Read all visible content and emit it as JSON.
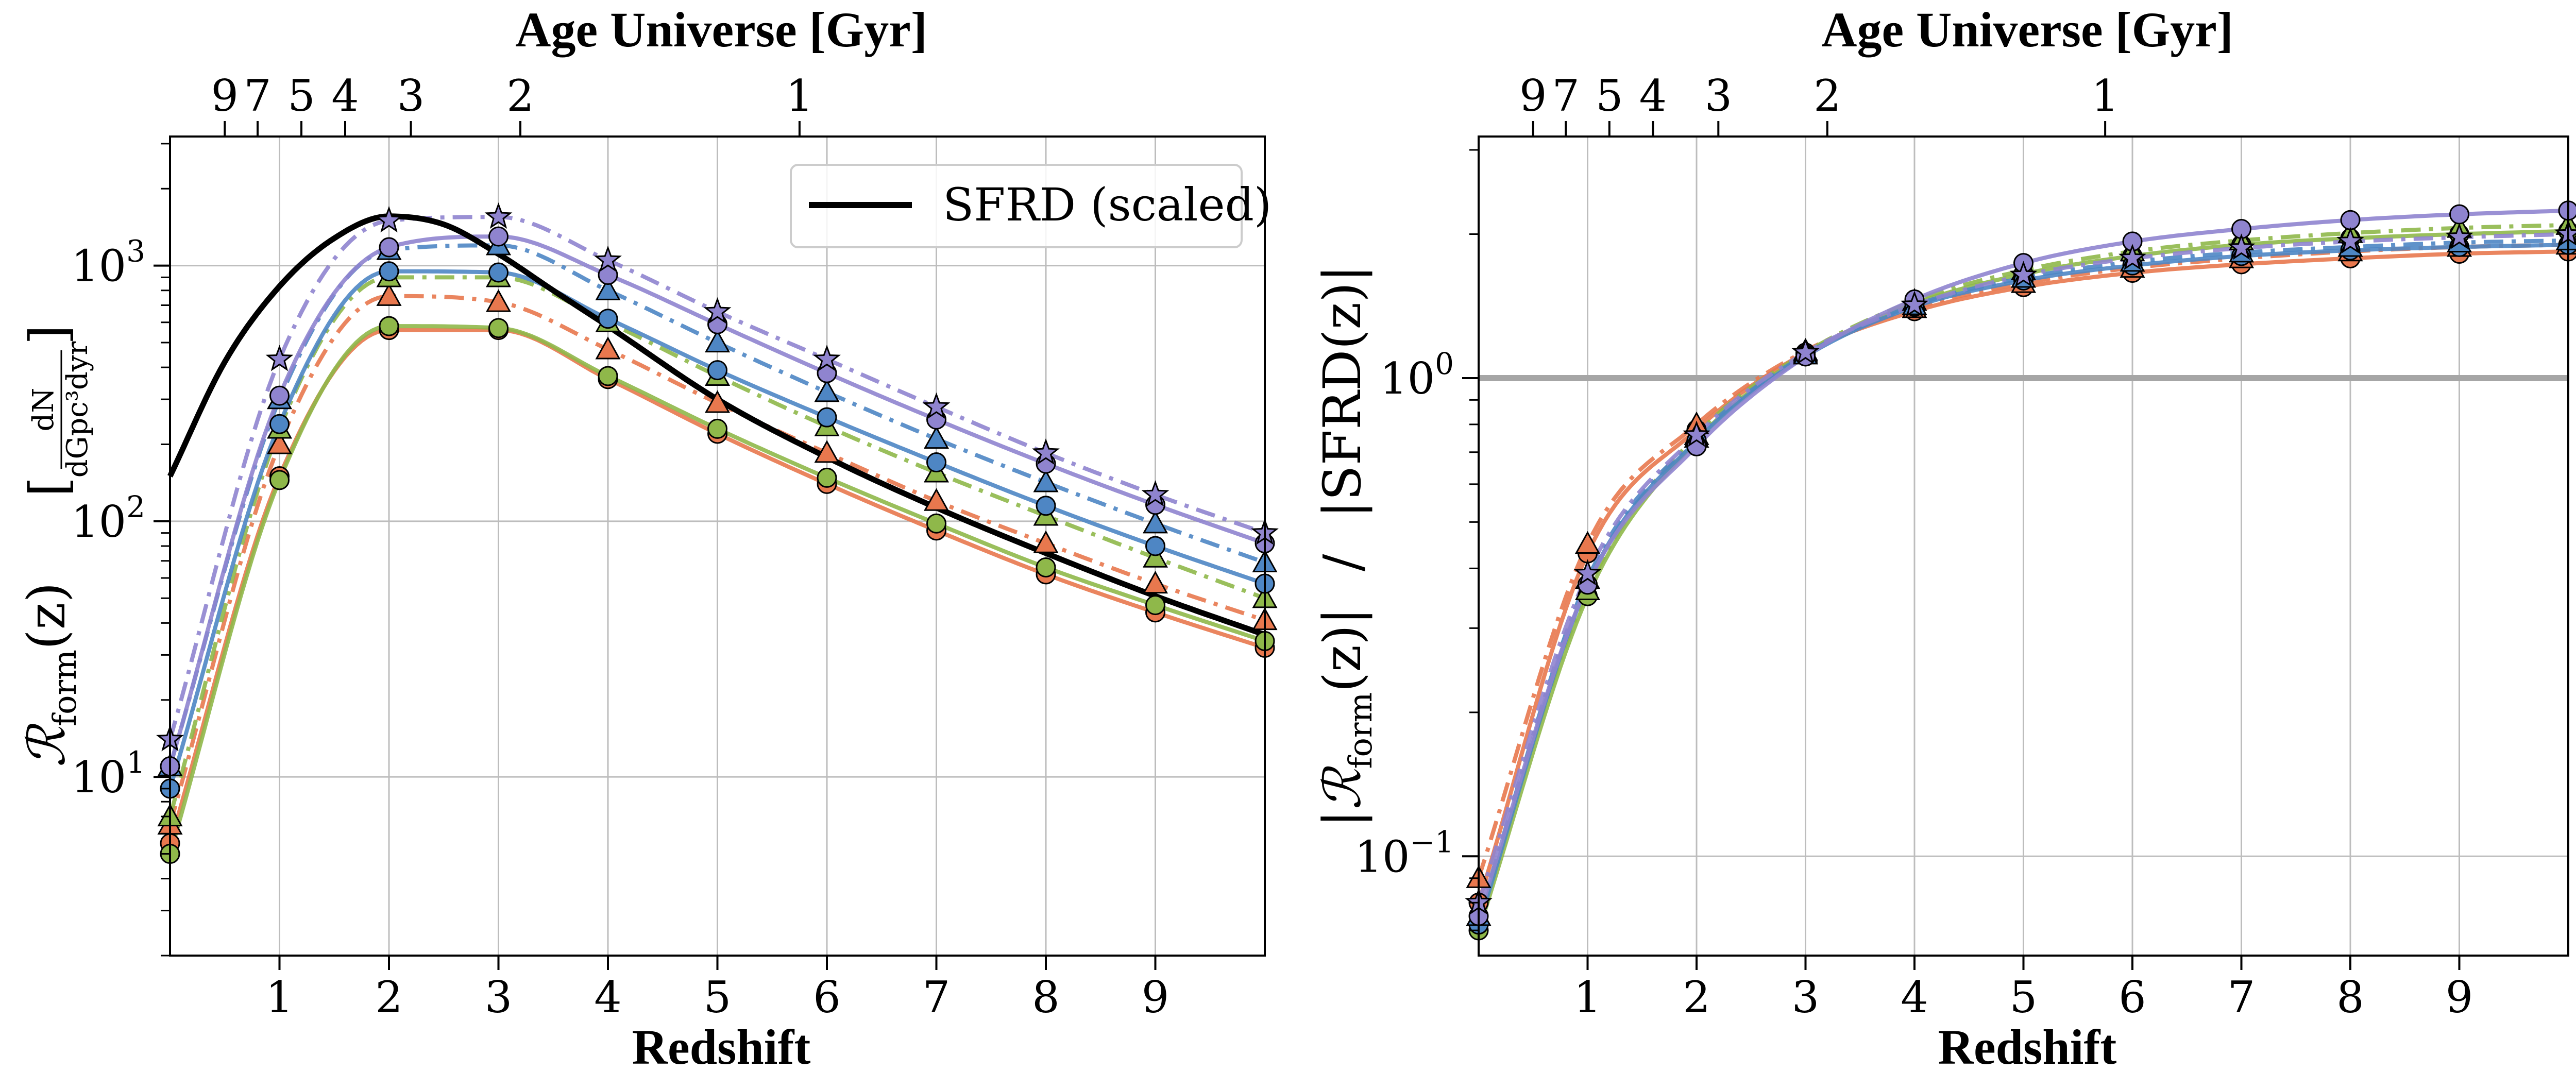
{
  "colors": {
    "orange": "#e8784e",
    "green": "#8fb84a",
    "blue": "#4e86c4",
    "purple": "#8f84cf",
    "black": "#000000",
    "grid": "#bdbdbd",
    "unity_line": "#a6a6a6"
  },
  "chart_data": [
    {
      "type": "line",
      "title": "",
      "top_axis_label": "Age Universe [Gyr]",
      "top_axis_ticks": [
        "9",
        "7",
        "5",
        "4",
        "3",
        "2",
        "1"
      ],
      "top_axis_tick_redshifts": [
        0.5,
        0.8,
        1.2,
        1.6,
        2.2,
        3.2,
        5.75
      ],
      "xlabel": "Redshift",
      "ylabel": "R_form(z) [dN / dGpc^3 dyr]",
      "ylabel_parts": {
        "main": "ℛ",
        "sub": "form",
        "arg": "(z)",
        "unit_num": "dN",
        "unit_den": "dGpc³dyr"
      },
      "xlim": [
        0,
        10
      ],
      "ylim": [
        2,
        3200
      ],
      "yscale": "log",
      "x_ticks": [
        "1",
        "2",
        "3",
        "4",
        "5",
        "6",
        "7",
        "8",
        "9"
      ],
      "y_ticks": [
        {
          "value": 10,
          "base": "10",
          "exp": "1"
        },
        {
          "value": 100,
          "base": "10",
          "exp": "2"
        },
        {
          "value": 1000,
          "base": "10",
          "exp": "3"
        }
      ],
      "grid": true,
      "legend": {
        "position": "top-right",
        "entries": [
          "SFRD (scaled)"
        ]
      },
      "marker_x": [
        0,
        1,
        2,
        3,
        4,
        5,
        6,
        7,
        8,
        9,
        10
      ],
      "sfrd_scaled": {
        "x": [
          0,
          0.5,
          1,
          1.5,
          2,
          2.5,
          3,
          3.5,
          4,
          5,
          6,
          7,
          8,
          9,
          10
        ],
        "y": [
          150,
          420,
          830,
          1280,
          1560,
          1450,
          1110,
          800,
          580,
          300,
          178,
          113,
          75,
          51,
          36
        ]
      },
      "series": [
        {
          "color": "orange",
          "style": "solid",
          "marker": "circle",
          "y": [
            5.5,
            150,
            560,
            560,
            360,
            220,
            140,
            92,
            62,
            44,
            32
          ]
        },
        {
          "color": "orange",
          "style": "dashdot",
          "marker": "triangle",
          "y": [
            6.5,
            200,
            760,
            720,
            470,
            290,
            185,
            120,
            82,
            57,
            41
          ]
        },
        {
          "color": "green",
          "style": "solid",
          "marker": "circle",
          "y": [
            5,
            145,
            580,
            570,
            370,
            230,
            148,
            98,
            66,
            47,
            34
          ]
        },
        {
          "color": "green",
          "style": "dashdot",
          "marker": "triangle",
          "y": [
            7,
            230,
            900,
            900,
            600,
            370,
            235,
            155,
            105,
            72,
            50
          ]
        },
        {
          "color": "blue",
          "style": "solid",
          "marker": "circle",
          "y": [
            9,
            240,
            950,
            940,
            620,
            390,
            255,
            170,
            115,
            80,
            57
          ]
        },
        {
          "color": "blue",
          "style": "dashdot",
          "marker": "triangle",
          "y": [
            11,
            300,
            1150,
            1200,
            800,
            500,
            320,
            210,
            142,
            98,
            69
          ]
        },
        {
          "color": "purple",
          "style": "solid",
          "marker": "circle",
          "y": [
            11,
            310,
            1180,
            1300,
            920,
            590,
            380,
            250,
            168,
            116,
            82
          ]
        },
        {
          "color": "purple",
          "style": "dashdot",
          "marker": "star",
          "y": [
            14,
            430,
            1500,
            1550,
            1050,
            660,
            430,
            280,
            185,
            127,
            90
          ]
        }
      ]
    },
    {
      "type": "line",
      "title": "",
      "top_axis_label": "Age Universe [Gyr]",
      "top_axis_ticks": [
        "9",
        "7",
        "5",
        "4",
        "3",
        "2",
        "1"
      ],
      "top_axis_tick_redshifts": [
        0.5,
        0.8,
        1.2,
        1.6,
        2.2,
        3.2,
        5.75
      ],
      "xlabel": "Redshift",
      "ylabel": "|R_form(z)| / |SFRD(z)|",
      "ylabel_parts": {
        "left": "|ℛ",
        "sub": "form",
        "arg": "(z)|",
        "sep": "/",
        "right": "|SFRD(z)|"
      },
      "xlim": [
        0,
        10
      ],
      "ylim": [
        0.062,
        3.2
      ],
      "yscale": "log",
      "x_ticks": [
        "1",
        "2",
        "3",
        "4",
        "5",
        "6",
        "7",
        "8",
        "9"
      ],
      "y_ticks": [
        {
          "value": 0.1,
          "base": "10",
          "exp": "−1"
        },
        {
          "value": 1,
          "base": "10",
          "exp": "0"
        }
      ],
      "grid": true,
      "reference_line_y": 1.0,
      "marker_x": [
        0,
        1,
        2,
        3,
        4,
        5,
        6,
        7,
        8,
        9,
        10
      ],
      "series": [
        {
          "color": "orange",
          "style": "solid",
          "marker": "circle",
          "y": [
            0.08,
            0.43,
            0.78,
            1.13,
            1.38,
            1.55,
            1.66,
            1.73,
            1.78,
            1.82,
            1.84
          ]
        },
        {
          "color": "orange",
          "style": "dashdot",
          "marker": "triangle",
          "y": [
            0.09,
            0.45,
            0.8,
            1.14,
            1.4,
            1.58,
            1.7,
            1.78,
            1.84,
            1.88,
            1.9
          ]
        },
        {
          "color": "green",
          "style": "solid",
          "marker": "circle",
          "y": [
            0.07,
            0.35,
            0.74,
            1.12,
            1.43,
            1.65,
            1.8,
            1.9,
            1.96,
            2.0,
            2.03
          ]
        },
        {
          "color": "green",
          "style": "dashdot",
          "marker": "triangle",
          "y": [
            0.075,
            0.36,
            0.76,
            1.13,
            1.45,
            1.68,
            1.84,
            1.94,
            2.01,
            2.06,
            2.09
          ]
        },
        {
          "color": "blue",
          "style": "solid",
          "marker": "circle",
          "y": [
            0.072,
            0.37,
            0.74,
            1.11,
            1.41,
            1.6,
            1.72,
            1.8,
            1.85,
            1.88,
            1.9
          ]
        },
        {
          "color": "blue",
          "style": "dashdot",
          "marker": "triangle",
          "y": [
            0.075,
            0.38,
            0.75,
            1.12,
            1.42,
            1.62,
            1.75,
            1.83,
            1.88,
            1.92,
            1.94
          ]
        },
        {
          "color": "purple",
          "style": "solid",
          "marker": "circle",
          "y": [
            0.075,
            0.37,
            0.72,
            1.11,
            1.46,
            1.74,
            1.93,
            2.05,
            2.14,
            2.2,
            2.24
          ]
        },
        {
          "color": "purple",
          "style": "dashdot",
          "marker": "star",
          "y": [
            0.08,
            0.39,
            0.76,
            1.13,
            1.42,
            1.64,
            1.78,
            1.87,
            1.93,
            1.97,
            2.0
          ]
        }
      ]
    }
  ]
}
